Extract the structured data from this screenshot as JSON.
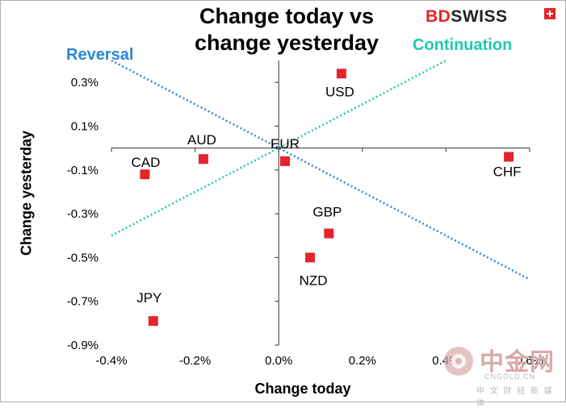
{
  "chart_data": {
    "type": "scatter",
    "title": "Change today vs change yesterday",
    "title_lines": [
      "Change today vs",
      "change yesterday"
    ],
    "xlabel": "Change today",
    "ylabel": "Change yesterday",
    "xlim": [
      -0.4,
      0.6
    ],
    "ylim": [
      -0.9,
      0.4
    ],
    "x_ticks": [
      -0.4,
      -0.2,
      0.0,
      0.2,
      0.4,
      0.6
    ],
    "x_tick_labels": [
      "-0.4%",
      "-0.2%",
      "0.0%",
      "0.2%",
      "0.4%",
      "0.6%"
    ],
    "y_ticks": [
      0.3,
      0.1,
      -0.1,
      -0.3,
      -0.5,
      -0.7,
      -0.9
    ],
    "y_tick_labels": [
      "0.3%",
      "0.1%",
      "-0.1%",
      "-0.3%",
      "-0.5%",
      "-0.7%",
      "-0.9%"
    ],
    "grid": false,
    "points": [
      {
        "label": "USD",
        "x": 0.15,
        "y": 0.34
      },
      {
        "label": "CHF",
        "x": 0.55,
        "y": -0.04
      },
      {
        "label": "EUR",
        "x": 0.015,
        "y": -0.06
      },
      {
        "label": "AUD",
        "x": -0.18,
        "y": -0.05
      },
      {
        "label": "CAD",
        "x": -0.32,
        "y": -0.12
      },
      {
        "label": "GBP",
        "x": 0.12,
        "y": -0.39
      },
      {
        "label": "NZD",
        "x": 0.075,
        "y": -0.5
      },
      {
        "label": "JPY",
        "x": -0.3,
        "y": -0.79
      }
    ],
    "trend_lines": [
      {
        "name": "Reversal",
        "color": "#2a87d6",
        "from": [
          -0.4,
          0.4
        ],
        "to": [
          0.6,
          -0.6
        ]
      },
      {
        "name": "Continuation",
        "color": "#1fc9b0",
        "from": [
          -0.4,
          -0.4
        ],
        "to": [
          0.4,
          0.4
        ]
      }
    ],
    "marker_color": "#e3242b"
  },
  "brand": {
    "prefix": "BD",
    "suffix": "SWISS"
  },
  "watermark": {
    "name": "中金网",
    "url": "CNGOLD.CN",
    "sub": "中 文 财 经 新 媒 体"
  }
}
